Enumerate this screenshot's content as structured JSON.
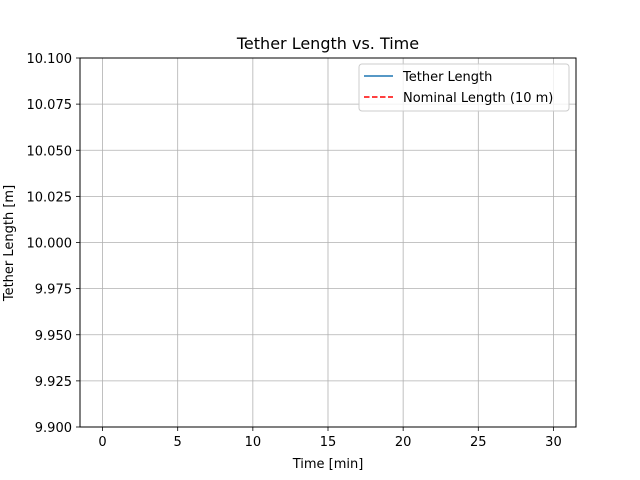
{
  "chart_data": {
    "type": "line",
    "title": "Tether Length vs. Time",
    "xlabel": "Time [min]",
    "ylabel": "Tether Length [m]",
    "xlim": [
      -1.5,
      31.5
    ],
    "ylim": [
      9.9,
      10.1
    ],
    "x_ticks": [
      0,
      5,
      10,
      15,
      20,
      25,
      30
    ],
    "x_tick_labels": [
      "0",
      "5",
      "10",
      "15",
      "20",
      "25",
      "30"
    ],
    "y_ticks": [
      9.9,
      9.925,
      9.95,
      9.975,
      10.0,
      10.025,
      10.05,
      10.075,
      10.1
    ],
    "y_tick_labels": [
      "9.900",
      "9.925",
      "9.950",
      "9.975",
      "10.000",
      "10.025",
      "10.050",
      "10.075",
      "10.100"
    ],
    "grid": true,
    "legend_position": "top-right",
    "series": [
      {
        "name": "Tether Length",
        "color": "#1f77b4",
        "style": "solid",
        "x": [],
        "y": []
      },
      {
        "name": "Nominal Length (10 m)",
        "color": "#ff0000",
        "style": "dashed",
        "x": [],
        "y": []
      }
    ]
  }
}
